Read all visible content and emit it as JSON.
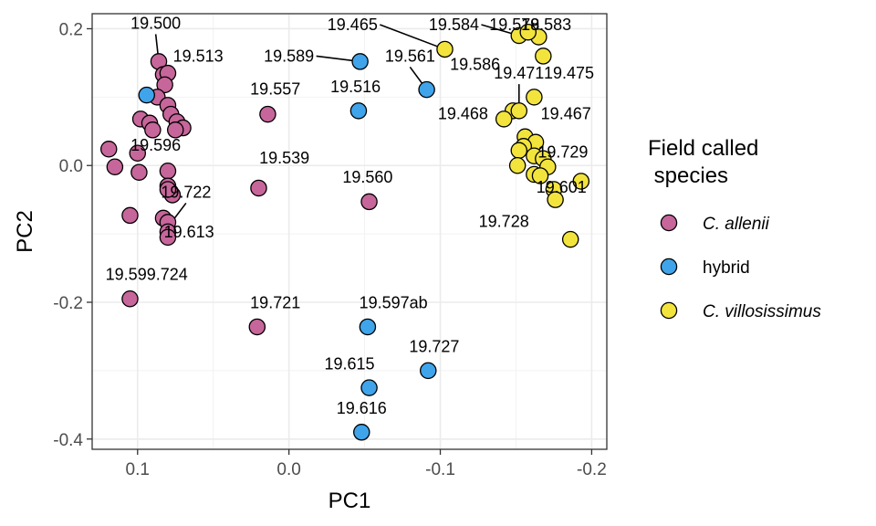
{
  "chart_data": {
    "type": "scatter",
    "xlabel": "PC1",
    "ylabel": "PC2",
    "x_reversed": true,
    "xlim": [
      0.13,
      -0.21
    ],
    "ylim": [
      -0.415,
      0.222
    ],
    "x_ticks": [
      0.1,
      0.0,
      -0.1,
      -0.2
    ],
    "x_tick_labels": [
      "0.1",
      "0.0",
      "-0.1",
      "-0.2"
    ],
    "y_ticks": [
      0.2,
      0.0,
      -0.2,
      -0.4
    ],
    "y_tick_labels": [
      "0.2",
      "0.0",
      "-0.2",
      "-0.4"
    ],
    "grid": true,
    "legend": {
      "position": "right",
      "title": "Field called\n species",
      "title_lines": [
        "Field called",
        " species"
      ]
    },
    "series": [
      {
        "name": "C. allenii",
        "italic": true,
        "color": "#C7669A",
        "points": [
          {
            "x": 0.086,
            "y": 0.152
          },
          {
            "x": 0.083,
            "y": 0.133
          },
          {
            "x": 0.08,
            "y": 0.135
          },
          {
            "x": 0.082,
            "y": 0.118
          },
          {
            "x": 0.087,
            "y": 0.1
          },
          {
            "x": 0.08,
            "y": 0.088
          },
          {
            "x": 0.078,
            "y": 0.075
          },
          {
            "x": 0.098,
            "y": 0.068
          },
          {
            "x": 0.092,
            "y": 0.062
          },
          {
            "x": 0.074,
            "y": 0.064
          },
          {
            "x": 0.07,
            "y": 0.055
          },
          {
            "x": 0.09,
            "y": 0.052
          },
          {
            "x": 0.075,
            "y": 0.052
          },
          {
            "x": 0.1,
            "y": 0.018
          },
          {
            "x": 0.119,
            "y": 0.024
          },
          {
            "x": 0.115,
            "y": -0.002
          },
          {
            "x": 0.099,
            "y": -0.01
          },
          {
            "x": 0.08,
            "y": -0.008
          },
          {
            "x": 0.08,
            "y": -0.03
          },
          {
            "x": 0.077,
            "y": -0.043
          },
          {
            "x": 0.08,
            "y": -0.035
          },
          {
            "x": 0.105,
            "y": -0.073
          },
          {
            "x": 0.083,
            "y": -0.077
          },
          {
            "x": 0.08,
            "y": -0.083
          },
          {
            "x": 0.08,
            "y": -0.097
          },
          {
            "x": 0.08,
            "y": -0.105
          },
          {
            "x": 0.105,
            "y": -0.195
          },
          {
            "x": 0.02,
            "y": -0.033
          },
          {
            "x": 0.014,
            "y": 0.075
          },
          {
            "x": -0.053,
            "y": -0.053
          },
          {
            "x": 0.021,
            "y": -0.236
          }
        ]
      },
      {
        "name": "hybrid",
        "italic": false,
        "color": "#3FA4EA",
        "points": [
          {
            "x": 0.094,
            "y": 0.103
          },
          {
            "x": -0.047,
            "y": 0.152
          },
          {
            "x": -0.091,
            "y": 0.111
          },
          {
            "x": -0.046,
            "y": 0.08
          },
          {
            "x": -0.052,
            "y": -0.236
          },
          {
            "x": -0.092,
            "y": -0.3
          },
          {
            "x": -0.053,
            "y": -0.325
          },
          {
            "x": -0.048,
            "y": -0.39
          }
        ]
      },
      {
        "name": "C. villosissimus",
        "italic": true,
        "color": "#F2E43C",
        "points": [
          {
            "x": -0.103,
            "y": 0.17
          },
          {
            "x": -0.152,
            "y": 0.19
          },
          {
            "x": -0.165,
            "y": 0.188
          },
          {
            "x": -0.158,
            "y": 0.195
          },
          {
            "x": -0.168,
            "y": 0.16
          },
          {
            "x": -0.162,
            "y": 0.1
          },
          {
            "x": -0.148,
            "y": 0.08
          },
          {
            "x": -0.152,
            "y": 0.08
          },
          {
            "x": -0.142,
            "y": 0.068
          },
          {
            "x": -0.156,
            "y": 0.042
          },
          {
            "x": -0.163,
            "y": 0.034
          },
          {
            "x": -0.155,
            "y": 0.028
          },
          {
            "x": -0.152,
            "y": 0.022
          },
          {
            "x": -0.162,
            "y": 0.014
          },
          {
            "x": -0.168,
            "y": 0.01
          },
          {
            "x": -0.151,
            "y": 0.0
          },
          {
            "x": -0.171,
            "y": -0.002
          },
          {
            "x": -0.162,
            "y": -0.013
          },
          {
            "x": -0.166,
            "y": -0.015
          },
          {
            "x": -0.193,
            "y": -0.023
          },
          {
            "x": -0.175,
            "y": -0.035
          },
          {
            "x": -0.176,
            "y": -0.05
          },
          {
            "x": -0.186,
            "y": -0.108
          }
        ]
      }
    ],
    "labels": [
      {
        "text": "19.500",
        "x": 0.088,
        "y": 0.2,
        "line_to": {
          "x": 0.086,
          "y": 0.152
        }
      },
      {
        "text": "19.513",
        "x": 0.06,
        "y": 0.152
      },
      {
        "text": "19.596",
        "x": 0.088,
        "y": 0.022
      },
      {
        "text": "19.722",
        "x": 0.068,
        "y": -0.047,
        "line_to": {
          "x": 0.08,
          "y": -0.09
        }
      },
      {
        "text": "19.613",
        "x": 0.066,
        "y": -0.105
      },
      {
        "text": "19.599.724",
        "x": 0.094,
        "y": -0.167
      },
      {
        "text": "19.557",
        "x": 0.009,
        "y": 0.104
      },
      {
        "text": "19.539",
        "x": 0.003,
        "y": 0.003
      },
      {
        "text": "19.560",
        "x": -0.052,
        "y": -0.025
      },
      {
        "text": "19.589",
        "x": 0.0,
        "y": 0.152,
        "line_to": {
          "x": -0.047,
          "y": 0.152
        }
      },
      {
        "text": "19.516",
        "x": -0.044,
        "y": 0.107
      },
      {
        "text": "19.561",
        "x": -0.08,
        "y": 0.152,
        "line_to": {
          "x": -0.091,
          "y": 0.111
        }
      },
      {
        "text": "19.721",
        "x": 0.009,
        "y": -0.209
      },
      {
        "text": "19.597ab",
        "x": -0.069,
        "y": -0.209
      },
      {
        "text": "19.727",
        "x": -0.096,
        "y": -0.273
      },
      {
        "text": "19.615",
        "x": -0.04,
        "y": -0.298
      },
      {
        "text": "19.616",
        "x": -0.048,
        "y": -0.363
      },
      {
        "text": "19.465",
        "x": -0.042,
        "y": 0.198,
        "line_to": {
          "x": -0.103,
          "y": 0.17
        }
      },
      {
        "text": "19.584",
        "x": -0.109,
        "y": 0.198,
        "line_to": {
          "x": -0.152,
          "y": 0.19
        }
      },
      {
        "text": "19.583",
        "x": -0.17,
        "y": 0.198
      },
      {
        "text": "19.578",
        "x": -0.149,
        "y": 0.198
      },
      {
        "text": "19.586",
        "x": -0.123,
        "y": 0.14
      },
      {
        "text": "19.471",
        "x": -0.152,
        "y": 0.127,
        "line_to": {
          "x": -0.152,
          "y": 0.08
        }
      },
      {
        "text": "19.475",
        "x": -0.185,
        "y": 0.127
      },
      {
        "text": "19.468",
        "x": -0.115,
        "y": 0.068
      },
      {
        "text": "19.467",
        "x": -0.183,
        "y": 0.068
      },
      {
        "text": "19.729",
        "x": -0.181,
        "y": 0.012
      },
      {
        "text": "19.601",
        "x": -0.18,
        "y": -0.04
      },
      {
        "text": "19.728",
        "x": -0.142,
        "y": -0.09
      }
    ]
  }
}
